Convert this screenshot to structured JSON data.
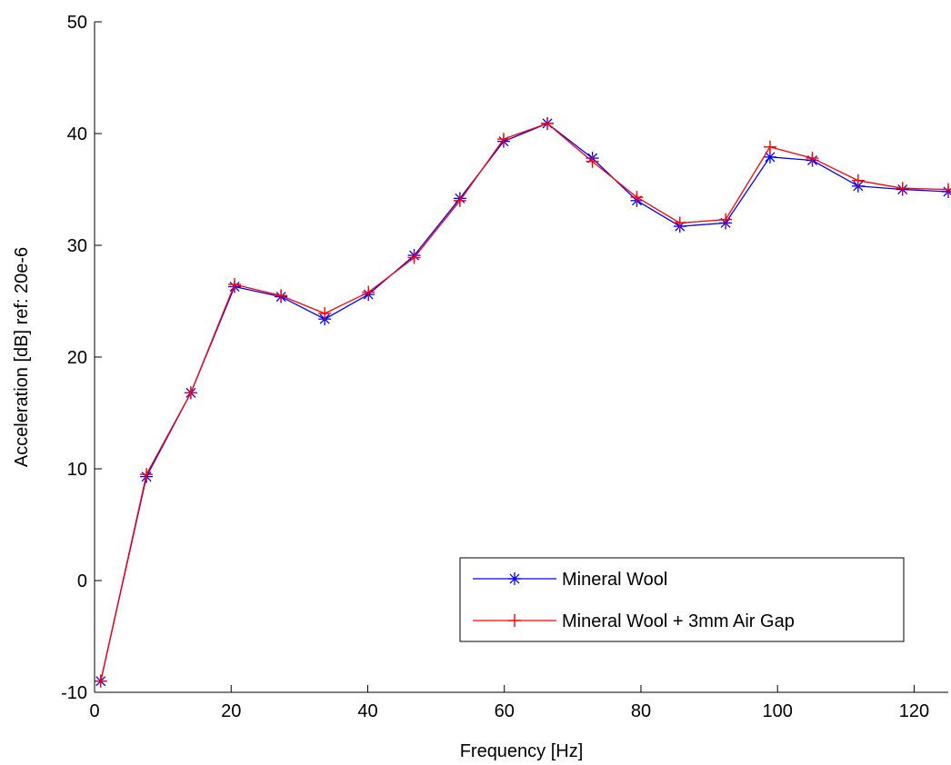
{
  "chart_data": {
    "type": "line",
    "xlabel": "Frequency [Hz]",
    "ylabel": "Acceleration [dB] ref: 20e-6",
    "xlim": [
      0,
      125
    ],
    "ylim": [
      -10,
      50
    ],
    "xticks": [
      0,
      20,
      40,
      60,
      80,
      100,
      120
    ],
    "yticks": [
      -10,
      0,
      10,
      20,
      30,
      40,
      50
    ],
    "grid": false,
    "legend_position": "bottom-right",
    "x": [
      0.9,
      7.6,
      14.1,
      20.5,
      27.3,
      33.7,
      40.1,
      46.8,
      53.5,
      59.9,
      66.3,
      72.9,
      79.4,
      85.7,
      92.4,
      98.9,
      105.1,
      111.8,
      118.3,
      125
    ],
    "series": [
      {
        "name": "Mineral Wool",
        "color": "#0000ff",
        "marker": "asterisk",
        "values": [
          -9,
          9.3,
          16.8,
          26.3,
          25.4,
          23.4,
          25.6,
          29.1,
          34.2,
          39.3,
          40.9,
          37.8,
          34.0,
          31.7,
          32.0,
          37.9,
          37.6,
          35.3,
          35.0,
          34.8
        ]
      },
      {
        "name": "Mineral Wool + 3mm Air Gap",
        "color": "#ff0000",
        "marker": "plus",
        "values": [
          -9,
          9.5,
          16.8,
          26.5,
          25.5,
          23.9,
          25.8,
          28.9,
          34.0,
          39.5,
          40.9,
          37.5,
          34.3,
          32.0,
          32.3,
          38.8,
          37.8,
          35.8,
          35.1,
          35.0
        ]
      }
    ]
  }
}
